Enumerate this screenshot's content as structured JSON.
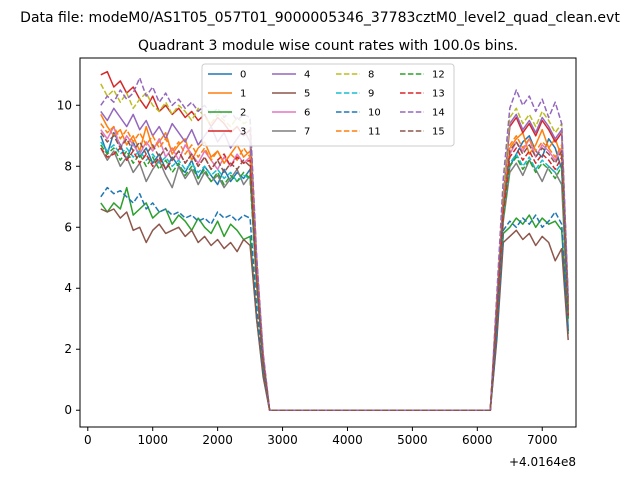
{
  "chart_data": {
    "type": "line",
    "suptitle": "Data file: modeM0/AS1T05_057T01_9000005346_37783cztM0_level2_quad_clean.evt",
    "title": "Quadrant 3 module wise count rates with 100.0s bins.",
    "xlabel": "",
    "ylabel": "",
    "x_offset_label": "+4.0164e8",
    "xlim": [
      -120,
      7520
    ],
    "ylim": [
      -0.55,
      11.55
    ],
    "x_ticks": [
      0,
      1000,
      2000,
      3000,
      4000,
      5000,
      6000,
      7000
    ],
    "y_ticks": [
      0,
      2,
      4,
      6,
      8,
      10
    ],
    "grid": false,
    "legend_position": "top",
    "segments": [
      {
        "start": 200,
        "end": 2700,
        "step": 100
      },
      {
        "start": 6300,
        "end": 7400,
        "step": 100
      }
    ],
    "series": [
      {
        "name": "0",
        "color": "#1f77b4",
        "dash": "solid",
        "levels": [
          8.3,
          8.7
        ],
        "values": [
          [
            9.0,
            8.4,
            9.1,
            8.7,
            8.2,
            8.8,
            8.3,
            8.6,
            8.1,
            8.4,
            7.9,
            8.3,
            8.0,
            7.8,
            8.2,
            7.6,
            8.0,
            7.7,
            7.4,
            7.9,
            7.5,
            7.8,
            7.6,
            7.9,
            4.2,
            1.6
          ],
          [
            3.1,
            6.3,
            8.0,
            8.4,
            8.8,
            9.0,
            8.5,
            8.3,
            8.9,
            8.6,
            7.9,
            2.6
          ]
        ]
      },
      {
        "name": "1",
        "color": "#ff7f0e",
        "dash": "solid",
        "levels": [
          9.0,
          8.7
        ],
        "values": [
          [
            9.7,
            9.3,
            9.0,
            9.2,
            8.7,
            9.0,
            8.5,
            9.3,
            8.6,
            8.8,
            9.1,
            8.4,
            8.7,
            8.9,
            8.2,
            8.6,
            8.8,
            8.3,
            8.5,
            8.1,
            8.4,
            8.7,
            8.3,
            8.5,
            4.5,
            1.7
          ],
          [
            3.2,
            6.5,
            8.6,
            8.9,
            9.1,
            8.4,
            8.7,
            9.2,
            8.6,
            8.9,
            8.3,
            3.1
          ]
        ]
      },
      {
        "name": "2",
        "color": "#2ca02c",
        "dash": "solid",
        "levels": [
          6.2,
          6.2
        ],
        "values": [
          [
            6.8,
            6.5,
            6.8,
            6.6,
            7.3,
            6.4,
            6.6,
            6.8,
            6.3,
            6.5,
            6.6,
            6.1,
            6.4,
            6.2,
            5.9,
            6.3,
            6.0,
            5.8,
            6.2,
            5.7,
            6.1,
            5.9,
            5.6,
            5.7,
            3.0,
            1.2
          ],
          [
            2.4,
            5.8,
            6.0,
            6.3,
            6.1,
            6.4,
            6.0,
            6.3,
            6.1,
            6.2,
            5.9,
            2.5
          ]
        ]
      },
      {
        "name": "3",
        "color": "#d62728",
        "dash": "solid",
        "levels": [
          10.2,
          9.3
        ],
        "values": [
          [
            11.0,
            11.1,
            10.6,
            10.8,
            10.4,
            10.6,
            10.2,
            9.9,
            10.3,
            9.8,
            10.0,
            9.7,
            9.9,
            9.6,
            9.8,
            9.5,
            9.7,
            9.3,
            9.6,
            9.4,
            9.1,
            9.3,
            9.0,
            9.2,
            5.0,
            1.8
          ],
          [
            3.5,
            7.0,
            9.3,
            9.6,
            9.1,
            9.4,
            9.0,
            9.5,
            9.2,
            8.8,
            9.1,
            3.4
          ]
        ]
      },
      {
        "name": "4",
        "color": "#9467bd",
        "dash": "solid",
        "levels": [
          9.4,
          9.4
        ],
        "values": [
          [
            9.8,
            9.5,
            9.9,
            9.6,
            9.3,
            9.7,
            9.2,
            9.5,
            9.0,
            9.3,
            8.9,
            9.4,
            9.1,
            8.8,
            9.2,
            8.7,
            9.0,
            9.3,
            8.8,
            9.1,
            8.6,
            8.9,
            9.2,
            8.8,
            4.8,
            1.8
          ],
          [
            3.5,
            7.0,
            9.4,
            9.7,
            9.2,
            9.5,
            9.1,
            9.6,
            9.3,
            8.9,
            9.2,
            3.6
          ]
        ]
      },
      {
        "name": "5",
        "color": "#8c564b",
        "dash": "solid",
        "levels": [
          5.8,
          5.6
        ],
        "values": [
          [
            6.6,
            6.5,
            6.6,
            6.3,
            6.5,
            5.9,
            6.0,
            5.5,
            5.9,
            6.1,
            5.8,
            5.9,
            6.0,
            5.7,
            5.9,
            5.5,
            5.7,
            5.4,
            5.6,
            5.3,
            5.5,
            5.2,
            5.6,
            5.4,
            3.0,
            1.1
          ],
          [
            2.3,
            5.5,
            5.7,
            5.9,
            5.6,
            5.8,
            5.4,
            5.7,
            5.5,
            4.9,
            5.3,
            2.3
          ]
        ]
      },
      {
        "name": "6",
        "color": "#e377c2",
        "dash": "solid",
        "levels": [
          8.9,
          8.6
        ],
        "values": [
          [
            9.2,
            8.9,
            9.3,
            8.6,
            9.0,
            8.7,
            8.4,
            8.8,
            8.5,
            8.9,
            8.3,
            8.6,
            8.2,
            8.7,
            8.4,
            8.1,
            8.5,
            8.2,
            7.9,
            8.3,
            8.0,
            8.4,
            8.1,
            8.3,
            4.5,
            1.6
          ],
          [
            3.2,
            6.6,
            8.4,
            8.8,
            8.5,
            8.9,
            8.3,
            8.7,
            8.5,
            8.2,
            8.6,
            3.3
          ]
        ]
      },
      {
        "name": "7",
        "color": "#7f7f7f",
        "dash": "solid",
        "levels": [
          8.0,
          8.0
        ],
        "values": [
          [
            8.6,
            8.2,
            8.5,
            8.0,
            8.3,
            7.8,
            8.1,
            7.5,
            7.9,
            8.2,
            7.7,
            7.3,
            8.0,
            7.6,
            7.9,
            7.4,
            7.8,
            7.5,
            7.7,
            7.3,
            7.6,
            7.9,
            7.4,
            7.7,
            4.2,
            1.5
          ],
          [
            3.0,
            6.2,
            7.8,
            8.1,
            7.7,
            8.2,
            7.9,
            7.5,
            8.0,
            7.8,
            7.4,
            3.0
          ]
        ]
      },
      {
        "name": "8",
        "color": "#bcbd22",
        "dash": "dashed",
        "levels": [
          10.3,
          9.6
        ],
        "values": [
          [
            10.7,
            10.3,
            10.5,
            10.1,
            10.4,
            9.9,
            10.2,
            10.4,
            10.0,
            9.8,
            10.1,
            9.7,
            10.0,
            9.8,
            9.5,
            9.9,
            9.6,
            9.4,
            9.7,
            9.5,
            9.3,
            9.6,
            9.4,
            9.5,
            5.0,
            1.8
          ],
          [
            3.6,
            7.2,
            9.6,
            9.9,
            9.4,
            9.7,
            9.3,
            9.8,
            9.5,
            9.1,
            9.4,
            3.5
          ]
        ]
      },
      {
        "name": "9",
        "color": "#17becf",
        "dash": "dashed",
        "levels": [
          8.5,
          8.2
        ],
        "values": [
          [
            8.8,
            8.5,
            8.7,
            8.4,
            8.6,
            8.3,
            8.5,
            8.2,
            8.4,
            8.1,
            8.3,
            8.0,
            8.2,
            7.9,
            8.1,
            7.8,
            8.0,
            7.7,
            7.9,
            7.6,
            7.8,
            7.5,
            7.7,
            7.6,
            4.1,
            1.5
          ],
          [
            3.1,
            6.4,
            8.1,
            8.4,
            8.0,
            8.3,
            7.9,
            8.2,
            8.0,
            7.8,
            8.1,
            3.0
          ]
        ]
      },
      {
        "name": "10",
        "color": "#1f77b4",
        "dash": "dashed",
        "levels": [
          6.9,
          6.2
        ],
        "values": [
          [
            7.0,
            7.3,
            7.1,
            7.2,
            7.0,
            6.8,
            7.1,
            6.6,
            6.8,
            6.5,
            6.6,
            6.4,
            6.5,
            6.3,
            6.4,
            6.2,
            6.3,
            6.1,
            6.5,
            6.3,
            6.4,
            6.2,
            6.4,
            6.3,
            3.4,
            1.3
          ],
          [
            2.5,
            5.9,
            6.2,
            6.0,
            6.3,
            6.1,
            6.4,
            6.0,
            6.2,
            6.5,
            6.1,
            2.6
          ]
        ]
      },
      {
        "name": "11",
        "color": "#ff7f0e",
        "dash": "dashed",
        "levels": [
          9.1,
          8.8
        ],
        "values": [
          [
            9.4,
            9.1,
            9.3,
            8.9,
            9.2,
            8.8,
            9.1,
            8.7,
            9.0,
            8.6,
            8.9,
            8.5,
            8.8,
            8.4,
            8.7,
            8.3,
            8.6,
            8.2,
            8.5,
            8.1,
            8.4,
            8.2,
            8.6,
            8.3,
            4.5,
            1.6
          ],
          [
            3.3,
            6.7,
            8.7,
            9.0,
            8.6,
            8.9,
            8.5,
            8.8,
            8.6,
            8.3,
            8.7,
            3.2
          ]
        ]
      },
      {
        "name": "12",
        "color": "#2ca02c",
        "dash": "dashed",
        "levels": [
          8.3,
          8.0
        ],
        "values": [
          [
            8.7,
            8.4,
            8.6,
            8.2,
            8.5,
            8.1,
            8.4,
            8.0,
            8.3,
            7.9,
            8.2,
            7.8,
            8.1,
            7.7,
            8.0,
            7.6,
            7.9,
            7.5,
            7.8,
            7.4,
            7.7,
            7.5,
            7.8,
            7.6,
            4.1,
            1.5
          ],
          [
            3.0,
            6.3,
            8.0,
            8.3,
            7.9,
            8.2,
            7.8,
            8.1,
            7.9,
            7.6,
            8.0,
            3.0
          ]
        ]
      },
      {
        "name": "13",
        "color": "#d62728",
        "dash": "dashed",
        "levels": [
          8.6,
          8.3
        ],
        "values": [
          [
            8.6,
            8.3,
            8.4,
            8.6,
            8.2,
            8.5,
            8.1,
            8.4,
            8.0,
            8.3,
            7.9,
            8.2,
            8.5,
            8.1,
            8.4,
            8.0,
            8.3,
            7.9,
            8.2,
            8.4,
            8.0,
            8.3,
            8.1,
            8.2,
            4.4,
            1.6
          ],
          [
            3.1,
            6.5,
            8.3,
            8.6,
            8.2,
            8.5,
            8.1,
            8.4,
            8.2,
            7.9,
            8.3,
            3.1
          ]
        ]
      },
      {
        "name": "14",
        "color": "#9467bd",
        "dash": "dashed",
        "levels": [
          10.4,
          10.2
        ],
        "values": [
          [
            10.0,
            10.3,
            10.1,
            10.5,
            10.2,
            10.4,
            10.9,
            10.3,
            10.6,
            10.1,
            10.4,
            10.0,
            10.2,
            9.9,
            10.1,
            9.8,
            10.0,
            9.7,
            9.9,
            9.6,
            9.8,
            9.5,
            9.7,
            9.6,
            5.1,
            1.9
          ],
          [
            3.8,
            7.6,
            9.9,
            10.5,
            10.0,
            10.3,
            9.8,
            10.2,
            9.6,
            10.1,
            9.4,
            3.7
          ]
        ]
      },
      {
        "name": "15",
        "color": "#8c564b",
        "dash": "dashed",
        "levels": [
          8.9,
          8.6
        ],
        "values": [
          [
            9.1,
            8.8,
            9.0,
            8.6,
            8.9,
            8.5,
            8.8,
            8.4,
            8.7,
            8.3,
            8.6,
            8.2,
            8.5,
            8.1,
            8.4,
            8.0,
            8.3,
            7.9,
            8.2,
            7.8,
            8.1,
            7.9,
            8.2,
            8.0,
            4.3,
            1.6
          ],
          [
            3.2,
            6.6,
            8.5,
            8.8,
            8.4,
            8.7,
            8.3,
            8.6,
            8.4,
            8.1,
            8.5,
            3.2
          ]
        ]
      }
    ]
  }
}
